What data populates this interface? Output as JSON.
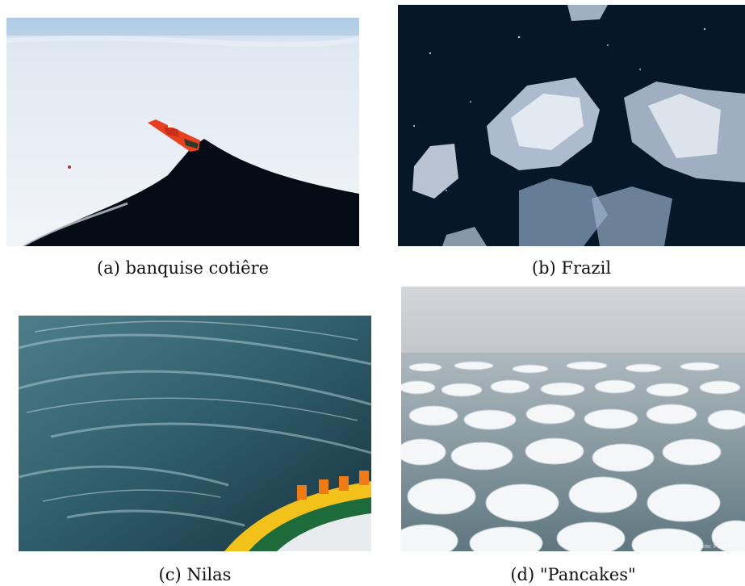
{
  "figure": {
    "panels": [
      {
        "id": "a",
        "caption": "(a) banquise cotiêre",
        "scene": "aerial view of red icebreaker ship cutting channel through white fast ice"
      },
      {
        "id": "b",
        "caption": "(b) Frazil",
        "scene": "close-up of frazil ice crystals on dark water"
      },
      {
        "id": "c",
        "caption": "(c) Nilas",
        "scene": "thin dark nilas ice seen from ship bow with crew in orange"
      },
      {
        "id": "d",
        "caption": "(d) \"Pancakes\"",
        "scene": "field of pancake ice floes under foggy sky"
      }
    ],
    "watermark_d": "Photo: Peter Bond"
  },
  "colors": {
    "ice_white": "#eef2f6",
    "dark_water": "#06111c",
    "ship_red": "#e8401f",
    "nilas_teal": "#2f5c6a",
    "crew_orange": "#f07a14",
    "fog_grey": "#c7cbd0"
  }
}
